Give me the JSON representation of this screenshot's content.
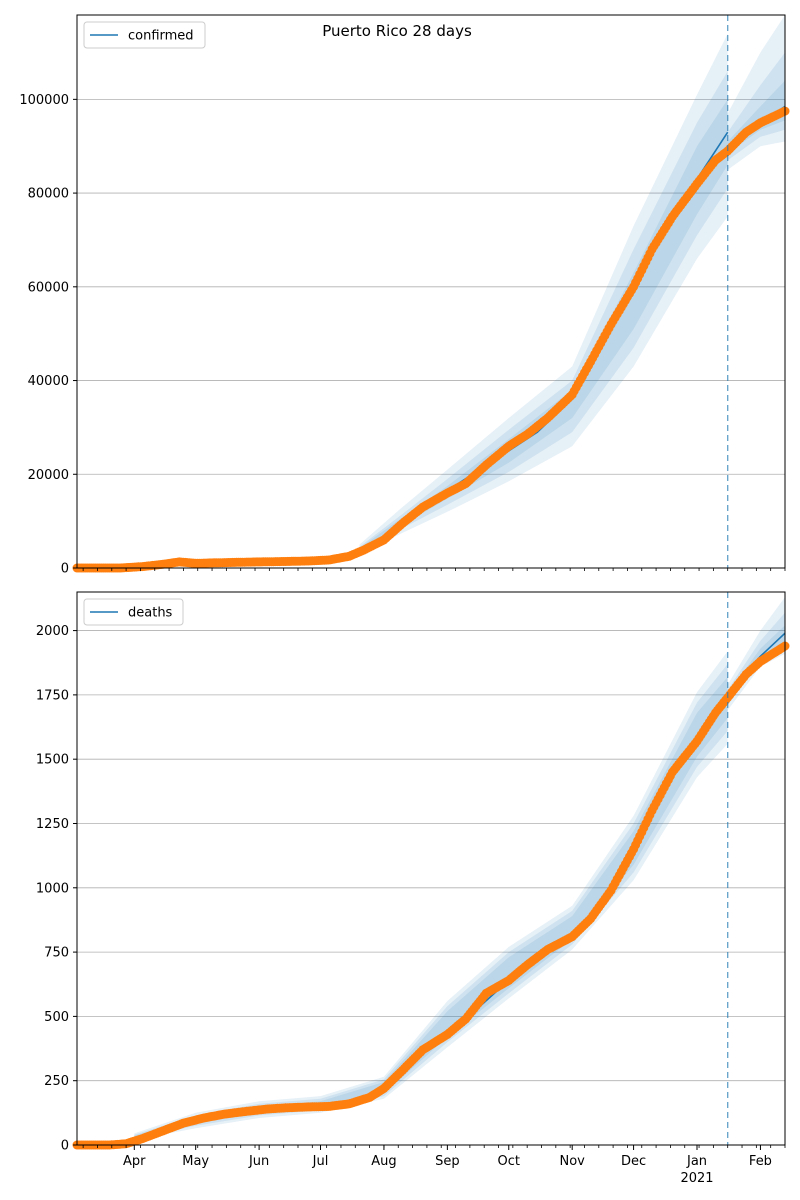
{
  "figure": {
    "title": "Puerto Rico 28 days"
  },
  "chart_data": [
    {
      "type": "line",
      "title": "Puerto Rico 28 days",
      "legend": {
        "label": "confirmed",
        "placement": "top-left"
      },
      "grid": "y",
      "ylim": [
        0,
        118000
      ],
      "y_ticks": [
        0,
        20000,
        40000,
        60000,
        80000,
        100000
      ],
      "y_tick_labels": [
        "0",
        "20000",
        "40000",
        "60000",
        "80000",
        "100000"
      ],
      "x_ticks": [],
      "x_tick_labels": [],
      "xlim": [
        "2020-03-04",
        "2021-02-13"
      ],
      "forecast_start": "2021-01-16",
      "line_color": "#1f77b4",
      "observed_color": "#ff7f0e",
      "band_color": "#1f77b4",
      "observed": {
        "x": [
          "2020-03-04",
          "2020-03-15",
          "2020-03-25",
          "2020-04-05",
          "2020-04-15",
          "2020-04-23",
          "2020-05-01",
          "2020-05-10",
          "2020-05-20",
          "2020-06-01",
          "2020-06-15",
          "2020-06-25",
          "2020-07-05",
          "2020-07-15",
          "2020-07-22",
          "2020-08-01",
          "2020-08-10",
          "2020-08-20",
          "2020-09-01",
          "2020-09-10",
          "2020-09-20",
          "2020-10-01",
          "2020-10-10",
          "2020-10-20",
          "2020-11-01",
          "2020-11-10",
          "2020-11-20",
          "2020-12-01",
          "2020-12-10",
          "2020-12-20",
          "2021-01-01",
          "2021-01-10",
          "2021-01-16",
          "2021-01-25",
          "2021-02-01",
          "2021-02-13"
        ],
        "values": [
          0,
          0,
          0,
          300,
          800,
          1300,
          1000,
          1100,
          1200,
          1300,
          1400,
          1500,
          1700,
          2500,
          3800,
          6000,
          9500,
          13000,
          16000,
          18000,
          22000,
          26000,
          28500,
          32000,
          37000,
          44000,
          52000,
          60000,
          68000,
          75000,
          82000,
          87000,
          89000,
          93000,
          95000,
          97500
        ]
      },
      "model": {
        "x": [
          "2020-07-15",
          "2020-08-01",
          "2020-08-15",
          "2020-09-01",
          "2020-09-15",
          "2020-10-01",
          "2020-10-15",
          "2020-11-01",
          "2020-11-15",
          "2020-12-01",
          "2020-12-15",
          "2021-01-01",
          "2021-01-16"
        ],
        "values": [
          2500,
          6000,
          11500,
          16500,
          20500,
          25000,
          29000,
          36000,
          47000,
          59000,
          71000,
          83000,
          93000
        ]
      },
      "forecast": {
        "x": [
          "2021-01-16",
          "2021-01-25",
          "2021-02-01",
          "2021-02-13"
        ],
        "values": [
          89000,
          92500,
          95000,
          98500
        ]
      },
      "bands": [
        {
          "x": [
            "2020-07-20",
            "2020-08-10",
            "2020-09-01",
            "2020-10-01",
            "2020-11-01",
            "2020-12-01",
            "2021-01-01",
            "2021-01-16"
          ],
          "lower": [
            3000,
            7500,
            12000,
            18500,
            26000,
            43000,
            66000,
            75000
          ],
          "upper": [
            5000,
            13000,
            21000,
            32000,
            43000,
            73000,
            101000,
            114000
          ]
        },
        {
          "x": [
            "2020-07-20",
            "2020-08-10",
            "2020-09-01",
            "2020-10-01",
            "2020-11-01",
            "2020-12-01",
            "2021-01-01",
            "2021-01-16"
          ],
          "lower": [
            3500,
            8500,
            13500,
            20500,
            29000,
            47000,
            71000,
            81000
          ],
          "upper": [
            4500,
            11500,
            19000,
            29500,
            40000,
            68000,
            95000,
            106000
          ]
        },
        {
          "x": [
            "2020-07-20",
            "2020-08-10",
            "2020-09-01",
            "2020-10-01",
            "2020-11-01",
            "2020-12-01",
            "2021-01-01",
            "2021-01-16"
          ],
          "lower": [
            3800,
            9200,
            14800,
            22500,
            32000,
            51000,
            75500,
            86000
          ],
          "upper": [
            4200,
            10800,
            17500,
            27500,
            38000,
            63000,
            90000,
            100000
          ]
        },
        {
          "x": [
            "2021-01-16",
            "2021-02-01",
            "2021-02-13"
          ],
          "lower": [
            85000,
            90000,
            91000
          ],
          "upper": [
            97000,
            110000,
            118000
          ]
        },
        {
          "x": [
            "2021-01-16",
            "2021-02-01",
            "2021-02-13"
          ],
          "lower": [
            87000,
            92000,
            93500
          ],
          "upper": [
            93000,
            103000,
            110000
          ]
        },
        {
          "x": [
            "2021-01-16",
            "2021-02-01",
            "2021-02-13"
          ],
          "lower": [
            88500,
            93500,
            95500
          ],
          "upper": [
            91000,
            98500,
            104000
          ]
        }
      ]
    },
    {
      "type": "line",
      "legend": {
        "label": "deaths",
        "placement": "top-left"
      },
      "grid": "y",
      "ylim": [
        0,
        2150
      ],
      "y_ticks": [
        0,
        250,
        500,
        750,
        1000,
        1250,
        1500,
        1750,
        2000
      ],
      "y_tick_labels": [
        "0",
        "250",
        "500",
        "750",
        "1000",
        "1250",
        "1500",
        "1750",
        "2000"
      ],
      "x_ticks": [
        "2020-04-01",
        "2020-05-01",
        "2020-06-01",
        "2020-07-01",
        "2020-08-01",
        "2020-09-01",
        "2020-10-01",
        "2020-11-01",
        "2020-12-01",
        "2021-01-01",
        "2021-02-01"
      ],
      "x_tick_labels": [
        "Apr",
        "May",
        "Jun",
        "Jul",
        "Aug",
        "Sep",
        "Oct",
        "Nov",
        "Dec",
        "Jan",
        "Feb"
      ],
      "x_year_label": {
        "at": "2021-01-01",
        "text": "2021"
      },
      "xlim": [
        "2020-03-04",
        "2021-02-13"
      ],
      "forecast_start": "2021-01-16",
      "line_color": "#1f77b4",
      "observed_color": "#ff7f0e",
      "band_color": "#1f77b4",
      "observed": {
        "x": [
          "2020-03-04",
          "2020-03-20",
          "2020-03-28",
          "2020-04-05",
          "2020-04-15",
          "2020-04-25",
          "2020-05-05",
          "2020-05-15",
          "2020-05-25",
          "2020-06-05",
          "2020-06-15",
          "2020-06-25",
          "2020-07-05",
          "2020-07-15",
          "2020-07-25",
          "2020-08-01",
          "2020-08-10",
          "2020-08-20",
          "2020-09-01",
          "2020-09-10",
          "2020-09-20",
          "2020-10-01",
          "2020-10-10",
          "2020-10-20",
          "2020-11-01",
          "2020-11-10",
          "2020-11-20",
          "2020-12-01",
          "2020-12-10",
          "2020-12-20",
          "2021-01-01",
          "2021-01-10",
          "2021-01-16",
          "2021-01-25",
          "2021-02-01",
          "2021-02-13"
        ],
        "values": [
          0,
          0,
          5,
          25,
          55,
          85,
          105,
          120,
          130,
          140,
          145,
          148,
          150,
          160,
          185,
          220,
          290,
          370,
          430,
          490,
          590,
          640,
          700,
          760,
          810,
          880,
          990,
          1150,
          1300,
          1450,
          1570,
          1680,
          1740,
          1830,
          1880,
          1940
        ]
      },
      "model": {
        "x": [
          "2020-03-25",
          "2020-04-15",
          "2020-05-10",
          "2020-06-10",
          "2020-07-10",
          "2020-08-01",
          "2020-08-20",
          "2020-09-10",
          "2020-10-01",
          "2020-10-20",
          "2020-11-10",
          "2020-12-01",
          "2020-12-20",
          "2021-01-10",
          "2021-01-16"
        ],
        "values": [
          10,
          55,
          110,
          140,
          155,
          215,
          370,
          490,
          640,
          760,
          870,
          1150,
          1450,
          1660,
          1730
        ]
      },
      "forecast": {
        "x": [
          "2021-01-16",
          "2021-01-25",
          "2021-02-01",
          "2021-02-13"
        ],
        "values": [
          1740,
          1840,
          1900,
          1990
        ]
      },
      "bands": [
        {
          "x": [
            "2020-04-01",
            "2020-05-01",
            "2020-06-01",
            "2020-07-01",
            "2020-08-01",
            "2020-09-01",
            "2020-10-01",
            "2020-11-01",
            "2020-12-01",
            "2021-01-01",
            "2021-01-16"
          ],
          "lower": [
            20,
            65,
            105,
            125,
            180,
            380,
            570,
            760,
            1030,
            1430,
            1560
          ],
          "upper": [
            45,
            125,
            170,
            190,
            265,
            560,
            770,
            930,
            1280,
            1760,
            1920
          ]
        },
        {
          "x": [
            "2020-04-01",
            "2020-05-01",
            "2020-06-01",
            "2020-07-01",
            "2020-08-01",
            "2020-09-01",
            "2020-10-01",
            "2020-11-01",
            "2020-12-01",
            "2021-01-01",
            "2021-01-16"
          ],
          "lower": [
            24,
            75,
            115,
            135,
            190,
            400,
            590,
            780,
            1060,
            1470,
            1610
          ],
          "upper": [
            40,
            115,
            160,
            180,
            255,
            540,
            750,
            910,
            1250,
            1720,
            1870
          ]
        },
        {
          "x": [
            "2020-04-01",
            "2020-05-01",
            "2020-06-01",
            "2020-07-01",
            "2020-08-01",
            "2020-09-01",
            "2020-10-01",
            "2020-11-01",
            "2020-12-01",
            "2021-01-01",
            "2021-01-16"
          ],
          "lower": [
            28,
            85,
            125,
            142,
            200,
            420,
            610,
            800,
            1090,
            1510,
            1660
          ],
          "upper": [
            36,
            105,
            150,
            170,
            245,
            520,
            730,
            890,
            1220,
            1680,
            1820
          ]
        },
        {
          "x": [
            "2021-01-16",
            "2021-02-01",
            "2021-02-13"
          ],
          "lower": [
            1690,
            1860,
            1910
          ],
          "upper": [
            1790,
            2000,
            2130
          ]
        },
        {
          "x": [
            "2021-01-16",
            "2021-02-01",
            "2021-02-13"
          ],
          "lower": [
            1710,
            1880,
            1930
          ],
          "upper": [
            1770,
            1960,
            2070
          ]
        },
        {
          "x": [
            "2021-01-16",
            "2021-02-01",
            "2021-02-13"
          ],
          "lower": [
            1725,
            1895,
            1950
          ],
          "upper": [
            1755,
            1930,
            2020
          ]
        }
      ]
    }
  ]
}
